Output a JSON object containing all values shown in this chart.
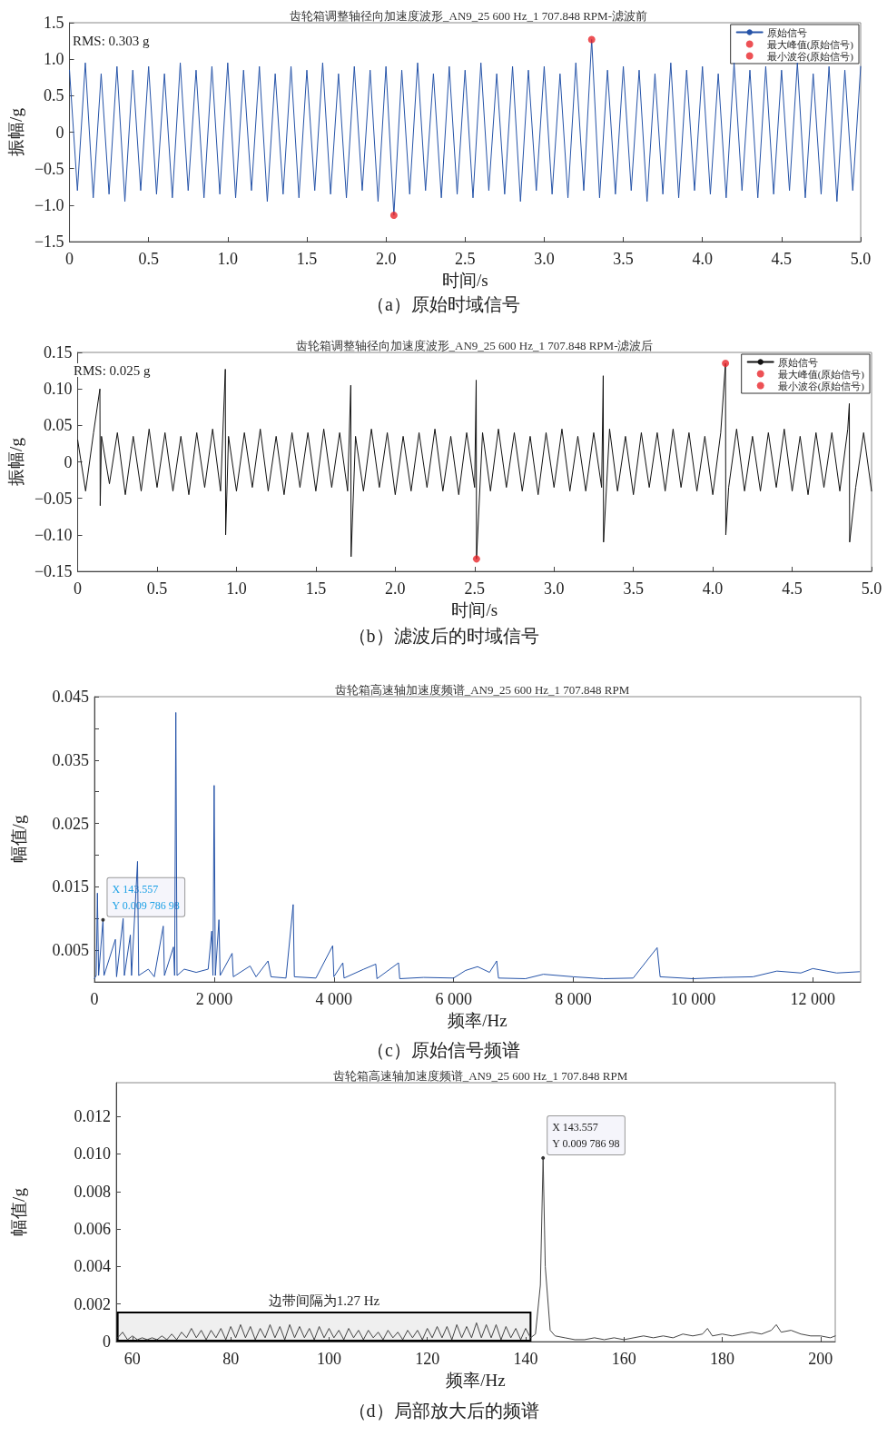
{
  "chart_data": [
    {
      "type": "line",
      "title": "齿轮箱调整轴径向加速度波形_AN9_25 600 Hz_1 707.848 RPM-滤波前",
      "xlabel": "时间/s",
      "ylabel": "振幅/g",
      "annotations": [
        "RMS: 0.303 g",
        "（a）原始时域信号"
      ],
      "x": [
        0,
        0.05,
        0.1,
        0.15,
        0.2,
        0.25,
        0.3,
        0.35,
        0.4,
        0.45,
        0.5,
        0.55,
        0.6,
        0.65,
        0.7,
        0.75,
        0.8,
        0.85,
        0.9,
        0.95,
        1,
        1.05,
        1.1,
        1.15,
        1.2,
        1.25,
        1.3,
        1.35,
        1.4,
        1.45,
        1.5,
        1.55,
        1.6,
        1.65,
        1.7,
        1.75,
        1.8,
        1.85,
        1.9,
        1.95,
        2,
        2.05,
        2.1,
        2.15,
        2.2,
        2.25,
        2.3,
        2.35,
        2.4,
        2.45,
        2.5,
        2.55,
        2.6,
        2.65,
        2.7,
        2.75,
        2.8,
        2.85,
        2.9,
        2.95,
        3,
        3.05,
        3.1,
        3.15,
        3.2,
        3.25,
        3.3,
        3.35,
        3.4,
        3.45,
        3.5,
        3.55,
        3.6,
        3.65,
        3.7,
        3.75,
        3.8,
        3.85,
        3.9,
        3.95,
        4,
        4.05,
        4.1,
        4.15,
        4.2,
        4.25,
        4.3,
        4.35,
        4.4,
        4.45,
        4.5,
        4.55,
        4.6,
        4.65,
        4.7,
        4.75,
        4.8,
        4.85,
        4.9,
        4.95,
        5
      ],
      "series": [
        {
          "name": "原始信号",
          "color": "#2553a8",
          "values": [
            0.85,
            -0.8,
            0.95,
            -0.9,
            0.8,
            -0.85,
            0.9,
            -0.95,
            0.85,
            -0.8,
            0.9,
            -0.85,
            0.8,
            -0.9,
            0.95,
            -0.8,
            0.85,
            -0.9,
            0.9,
            -0.85,
            0.95,
            -0.9,
            0.85,
            -0.8,
            0.9,
            -0.95,
            0.8,
            -0.85,
            0.9,
            -0.9,
            0.85,
            -0.8,
            0.95,
            -0.85,
            0.8,
            -0.9,
            0.9,
            -0.8,
            0.85,
            -0.95,
            0.9,
            -1.14,
            0.85,
            -0.85,
            0.95,
            -0.8,
            0.8,
            -0.9,
            0.9,
            -0.85,
            0.85,
            -0.9,
            0.95,
            -0.8,
            0.8,
            -0.85,
            0.9,
            -0.95,
            0.85,
            -0.8,
            0.9,
            -0.85,
            0.8,
            -0.9,
            0.95,
            -0.8,
            1.27,
            -0.9,
            0.85,
            -0.85,
            0.9,
            -0.8,
            0.85,
            -0.95,
            0.8,
            -0.85,
            0.95,
            -0.9,
            0.85,
            -0.8,
            0.9,
            -0.85,
            0.8,
            -0.9,
            0.95,
            -0.8,
            0.85,
            -0.9,
            0.9,
            -0.85,
            0.85,
            -0.8,
            0.95,
            -0.9,
            0.8,
            -0.85,
            0.9,
            -0.95,
            0.85,
            -0.8,
            0.9
          ]
        },
        {
          "name": "最大峰值(原始信号)",
          "type": "scatter",
          "marker": "circle",
          "color": "#e8262a",
          "x": [
            3.3
          ],
          "values": [
            1.27
          ]
        },
        {
          "name": "最小波谷(原始信号)",
          "type": "scatter",
          "marker": "circle",
          "color": "#e8262a",
          "x": [
            2.05
          ],
          "values": [
            -1.14
          ]
        }
      ],
      "xlim": [
        0,
        5
      ],
      "xticks": [
        0,
        0.5,
        {
          "value": 1,
          "label": "1.0"
        },
        1.5,
        {
          "value": 2,
          "label": "2.0"
        },
        2.5,
        {
          "value": 3,
          "label": "3.0"
        },
        3.5,
        {
          "value": 4,
          "label": "4.0"
        },
        4.5,
        {
          "value": 5,
          "label": "5.0"
        }
      ],
      "ylim": [
        -1.5,
        1.5
      ],
      "yticks": [
        {
          "value": -1.5,
          "label": "−1.5"
        },
        {
          "value": -1,
          "label": "−1.0"
        },
        {
          "value": -0.5,
          "label": "−0.5"
        },
        0,
        0.5,
        {
          "value": 1,
          "label": "1.0"
        },
        1.5
      ],
      "legend": "top right",
      "grid": false,
      "line_style": "solid"
    },
    {
      "type": "line",
      "title": "齿轮箱调整轴径向加速度波形_AN9_25 600 Hz_1 707.848 RPM-滤波后",
      "xlabel": "时间/s",
      "ylabel": "振幅/g",
      "annotations": [
        "RMS: 0.025 g",
        "（b）滤波后的时域信号"
      ],
      "x": [
        0,
        0.05,
        0.1,
        0.14,
        0.142,
        0.15,
        0.2,
        0.25,
        0.3,
        0.35,
        0.4,
        0.45,
        0.5,
        0.55,
        0.6,
        0.65,
        0.7,
        0.75,
        0.8,
        0.85,
        0.9,
        0.93,
        0.932,
        0.95,
        1,
        1.05,
        1.1,
        1.15,
        1.2,
        1.25,
        1.3,
        1.35,
        1.4,
        1.45,
        1.5,
        1.55,
        1.6,
        1.65,
        1.7,
        1.72,
        1.722,
        1.75,
        1.8,
        1.85,
        1.9,
        1.95,
        2,
        2.05,
        2.1,
        2.15,
        2.2,
        2.25,
        2.3,
        2.35,
        2.4,
        2.45,
        2.5,
        2.51,
        2.512,
        2.55,
        2.6,
        2.65,
        2.7,
        2.75,
        2.8,
        2.85,
        2.9,
        2.95,
        3,
        3.05,
        3.1,
        3.15,
        3.2,
        3.25,
        3.3,
        3.31,
        3.312,
        3.35,
        3.4,
        3.45,
        3.5,
        3.55,
        3.6,
        3.65,
        3.7,
        3.75,
        3.8,
        3.85,
        3.9,
        3.95,
        4,
        4.05,
        4.08,
        4.082,
        4.1,
        4.15,
        4.2,
        4.25,
        4.3,
        4.35,
        4.4,
        4.45,
        4.5,
        4.55,
        4.6,
        4.65,
        4.7,
        4.75,
        4.8,
        4.85,
        4.86,
        4.862,
        4.9,
        4.95,
        5
      ],
      "series": [
        {
          "name": "原始信号",
          "color": "#111111",
          "values": [
            0.03,
            -0.04,
            0.04,
            0.1,
            -0.06,
            0.035,
            -0.03,
            0.04,
            -0.045,
            0.035,
            -0.04,
            0.045,
            -0.035,
            0.04,
            -0.04,
            0.035,
            -0.045,
            0.04,
            -0.035,
            0.045,
            -0.04,
            0.127,
            -0.1,
            0.035,
            -0.04,
            0.04,
            -0.035,
            0.045,
            -0.04,
            0.035,
            -0.045,
            0.04,
            -0.035,
            0.04,
            -0.04,
            0.045,
            -0.035,
            0.04,
            -0.04,
            0.105,
            -0.13,
            0.035,
            -0.04,
            0.045,
            -0.035,
            0.04,
            -0.045,
            0.035,
            -0.04,
            0.04,
            -0.035,
            0.045,
            -0.04,
            0.035,
            -0.045,
            0.04,
            -0.035,
            0.112,
            -0.133,
            0.04,
            -0.04,
            0.045,
            -0.035,
            0.04,
            -0.04,
            0.035,
            -0.045,
            0.04,
            -0.035,
            0.045,
            -0.04,
            0.035,
            -0.04,
            0.04,
            -0.035,
            0.118,
            -0.11,
            0.045,
            -0.04,
            0.035,
            -0.045,
            0.04,
            -0.035,
            0.04,
            -0.04,
            0.045,
            -0.035,
            0.04,
            -0.04,
            0.035,
            -0.045,
            0.04,
            0.135,
            -0.1,
            -0.035,
            0.045,
            -0.04,
            0.035,
            -0.04,
            0.04,
            -0.035,
            0.045,
            -0.04,
            0.035,
            -0.045,
            0.04,
            -0.035,
            0.04,
            -0.04,
            0.045,
            0.08,
            -0.11,
            -0.035,
            0.04,
            -0.04
          ]
        },
        {
          "name": "最大峰值(原始信号)",
          "type": "scatter",
          "marker": "circle",
          "color": "#e8262a",
          "x": [
            4.08
          ],
          "values": [
            0.135
          ]
        },
        {
          "name": "最小波谷(原始信号)",
          "type": "scatter",
          "marker": "circle",
          "color": "#e8262a",
          "x": [
            2.512
          ],
          "values": [
            -0.133
          ]
        }
      ],
      "xlim": [
        0,
        5
      ],
      "xticks": [
        0,
        0.5,
        {
          "value": 1,
          "label": "1.0"
        },
        1.5,
        {
          "value": 2,
          "label": "2.0"
        },
        2.5,
        {
          "value": 3,
          "label": "3.0"
        },
        3.5,
        {
          "value": 4,
          "label": "4.0"
        },
        4.5,
        {
          "value": 5,
          "label": "5.0"
        }
      ],
      "ylim": [
        -0.15,
        0.15
      ],
      "yticks": [
        {
          "value": -0.15,
          "label": "−0.15"
        },
        {
          "value": -0.1,
          "label": "−0.10"
        },
        {
          "value": -0.05,
          "label": "−0.05"
        },
        0,
        0.05,
        {
          "value": 0.1,
          "label": "0.10"
        },
        0.15
      ],
      "legend": "top right",
      "grid": false,
      "line_style": "solid"
    },
    {
      "type": "line",
      "title": "齿轮箱高速轴加速度频谱_AN9_25 600 Hz_1 707.848 RPM",
      "xlabel": "频率/Hz",
      "ylabel": "幅值/g",
      "annotations": [
        {
          "text": "X 143.557\nY 0.009 786 98",
          "x": 143.557,
          "y": 0.00978698
        },
        "（c）原始信号频谱"
      ],
      "x": [
        0,
        30,
        50,
        70,
        143.557,
        160,
        350,
        370,
        480,
        500,
        600,
        620,
        720,
        740,
        900,
        1000,
        1150,
        1170,
        1320,
        1340,
        1360,
        1380,
        1500,
        1700,
        1900,
        1960,
        1980,
        2000,
        2020,
        2080,
        2100,
        2300,
        2320,
        2600,
        2700,
        2900,
        2950,
        3200,
        3320,
        3340,
        3700,
        3980,
        4000,
        4150,
        4170,
        4500,
        4700,
        4720,
        5080,
        5100,
        5500,
        6000,
        6200,
        6400,
        6600,
        6720,
        6750,
        7200,
        7500,
        8000,
        8500,
        9000,
        9400,
        9450,
        10000,
        10500,
        11000,
        11400,
        11800,
        12000,
        12400,
        12780
      ],
      "series": [
        {
          "color": "#2553a8",
          "values": [
            0.0005,
            0.001,
            0.014,
            0.001,
            0.0098,
            0.001,
            0.0067,
            0.0008,
            0.01,
            0.001,
            0.0074,
            0.001,
            0.019,
            0.001,
            0.002,
            0.0008,
            0.0088,
            0.001,
            0.0055,
            0.001,
            0.0425,
            0.001,
            0.002,
            0.0015,
            0.002,
            0.008,
            0.001,
            0.031,
            0.001,
            0.0098,
            0.001,
            0.0045,
            0.0008,
            0.0025,
            0.0008,
            0.0033,
            0.0008,
            0.0006,
            0.0122,
            0.0008,
            0.0006,
            0.0057,
            0.0008,
            0.003,
            0.0006,
            0.002,
            0.0028,
            0.0005,
            0.003,
            0.0005,
            0.0007,
            0.0006,
            0.0018,
            0.0024,
            0.0015,
            0.0033,
            0.0006,
            0.0005,
            0.0012,
            0.0008,
            0.0005,
            0.0006,
            0.0054,
            0.0008,
            0.0005,
            0.0007,
            0.0008,
            0.0017,
            0.0014,
            0.0021,
            0.0014,
            0.0016
          ]
        }
      ],
      "xlim": [
        0,
        12800
      ],
      "xticks": [
        0,
        {
          "value": 2000,
          "label": "2 000"
        },
        {
          "value": 4000,
          "label": "4 000"
        },
        {
          "value": 6000,
          "label": "6 000"
        },
        {
          "value": 8000,
          "label": "8 000"
        },
        {
          "value": 10000,
          "label": "10 000"
        },
        {
          "value": 12000,
          "label": "12 000"
        }
      ],
      "ylim": [
        0,
        0.045
      ],
      "yticks": [
        0.005,
        {
          "value": 0.01,
          "label": null
        },
        0.015,
        {
          "value": 0.02,
          "label": null
        },
        0.025,
        {
          "value": 0.03,
          "label": null
        },
        0.035,
        {
          "value": 0.04,
          "label": null
        },
        0.045
      ],
      "legend": false,
      "grid": false,
      "line_style": "solid"
    },
    {
      "type": "line",
      "title": "齿轮箱高速轴加速度频谱_AN9_25 600 Hz_1 707.848 RPM",
      "xlabel": "频率/Hz",
      "ylabel": "幅值/g",
      "annotations": [
        {
          "text": "X 143.557\nY 0.009 786 98",
          "x": 143.557,
          "y": 0.00978698
        },
        "（d）局部放大后的频谱"
      ],
      "bands": [
        {
          "axis": "x",
          "from": 57,
          "to": 141,
          "label": "边带间隔为1.27 Hz"
        }
      ],
      "x": [
        57,
        58,
        59,
        60,
        61,
        62,
        63,
        64,
        65,
        66,
        67,
        68,
        69,
        70,
        71,
        72,
        73,
        74,
        75,
        76,
        77,
        78,
        79,
        80,
        81,
        82,
        83,
        84,
        85,
        86,
        87,
        88,
        89,
        90,
        91,
        92,
        93,
        94,
        95,
        96,
        97,
        98,
        99,
        100,
        101,
        102,
        103,
        104,
        105,
        106,
        107,
        108,
        109,
        110,
        111,
        112,
        113,
        114,
        115,
        116,
        117,
        118,
        119,
        120,
        121,
        122,
        123,
        124,
        125,
        126,
        127,
        128,
        129,
        130,
        131,
        132,
        133,
        134,
        135,
        136,
        137,
        138,
        139,
        140,
        141,
        142,
        143,
        143.557,
        144,
        145,
        146,
        148,
        150,
        152,
        154,
        156,
        158,
        160,
        162,
        164,
        166,
        168,
        170,
        172,
        174,
        176,
        177,
        178,
        180,
        182,
        184,
        186,
        188,
        190,
        191,
        192,
        194,
        196,
        198,
        200,
        202,
        203
      ],
      "series": [
        {
          "color": "#444444",
          "values": [
            0.0002,
            0.0005,
            0.0001,
            0.0003,
            0.0001,
            0.0002,
            0.0001,
            0.0002,
            0.0001,
            0.0003,
            0.0001,
            0.0004,
            0.0001,
            0.0005,
            0.0002,
            0.0007,
            0.0002,
            0.0006,
            0.0001,
            0.0006,
            0.0002,
            0.0007,
            0.0001,
            0.0008,
            0.0002,
            0.0009,
            0.0002,
            0.0008,
            0.0001,
            0.0007,
            0.0002,
            0.0009,
            0.0002,
            0.0008,
            0.0001,
            0.0009,
            0.0002,
            0.0008,
            0.0002,
            0.0007,
            0.0001,
            0.0008,
            0.0002,
            0.0007,
            0.0002,
            0.0006,
            0.0001,
            0.0007,
            0.0002,
            0.0006,
            0.0001,
            0.0006,
            0.0002,
            0.0005,
            0.0001,
            0.0006,
            0.0002,
            0.0005,
            0.0001,
            0.0006,
            0.0002,
            0.0006,
            0.0001,
            0.0007,
            0.0002,
            0.0008,
            0.0002,
            0.0008,
            0.0001,
            0.0009,
            0.0002,
            0.0008,
            0.0002,
            0.001,
            0.0002,
            0.0009,
            0.0002,
            0.0009,
            0.0001,
            0.0008,
            0.0002,
            0.0007,
            0.0001,
            0.0007,
            0.0002,
            0.0004,
            0.003,
            0.0098,
            0.004,
            0.0006,
            0.0003,
            0.0002,
            0.0001,
            0.0001,
            0.0002,
            0.0001,
            0.0002,
            0.0001,
            0.0002,
            0.0003,
            0.0002,
            0.0003,
            0.0002,
            0.0004,
            0.0003,
            0.0004,
            0.0007,
            0.0003,
            0.0004,
            0.0003,
            0.0004,
            0.0005,
            0.0004,
            0.0006,
            0.0009,
            0.0005,
            0.0006,
            0.0004,
            0.0003,
            0.0003,
            0.0002,
            0.0003
          ]
        }
      ],
      "xlim": [
        56.7,
        203
      ],
      "xticks": [
        60,
        80,
        100,
        120,
        140,
        160,
        180,
        200
      ],
      "ylim": [
        0,
        0.0138
      ],
      "yticks": [
        0,
        0.002,
        0.004,
        0.006,
        0.008,
        {
          "value": 0.01,
          "label": "0.010"
        },
        0.012
      ],
      "legend": false,
      "grid": false,
      "line_style": "solid"
    }
  ]
}
